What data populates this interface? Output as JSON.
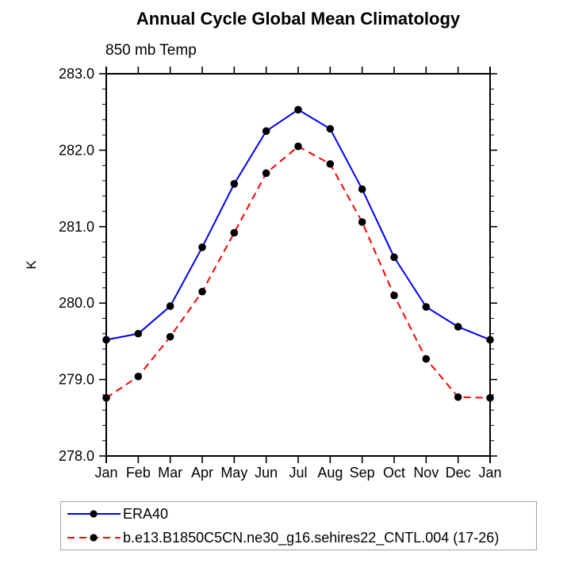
{
  "chart_data": {
    "type": "line",
    "title": "Annual Cycle Global Mean Climatology",
    "subtitle": "850 mb Temp",
    "ylabel": "K",
    "categories": [
      "Jan",
      "Feb",
      "Mar",
      "Apr",
      "May",
      "Jun",
      "Jul",
      "Aug",
      "Sep",
      "Oct",
      "Nov",
      "Dec",
      "Jan"
    ],
    "series": [
      {
        "name": "ERA40",
        "color": "#0000ff",
        "line_style": "solid",
        "marker": "filled-circle",
        "marker_color": "#000000",
        "values": [
          279.52,
          279.6,
          279.96,
          280.73,
          281.56,
          282.25,
          282.53,
          282.28,
          281.49,
          280.6,
          279.95,
          279.69,
          279.52
        ]
      },
      {
        "name": "b.e13.B1850C5CN.ne30_g16.sehires22_CNTL.004 (17-26)",
        "color": "#ff0000",
        "line_style": "dashed",
        "marker": "filled-circle",
        "marker_color": "#000000",
        "values": [
          278.76,
          279.04,
          279.56,
          280.15,
          280.92,
          281.7,
          282.05,
          281.82,
          281.06,
          280.1,
          279.27,
          278.77,
          278.76
        ]
      }
    ],
    "ylim": [
      278.0,
      283.0
    ],
    "y_major_ticks": [
      278.0,
      279.0,
      280.0,
      281.0,
      282.0,
      283.0
    ],
    "y_tick_labels": [
      "278.0",
      "279.0",
      "280.0",
      "281.0",
      "282.0",
      "283.0"
    ],
    "y_minor_step": 0.2,
    "grid": false,
    "legend_position": "bottom-left",
    "axis_color": "#000000",
    "background_color": "#ffffff"
  }
}
